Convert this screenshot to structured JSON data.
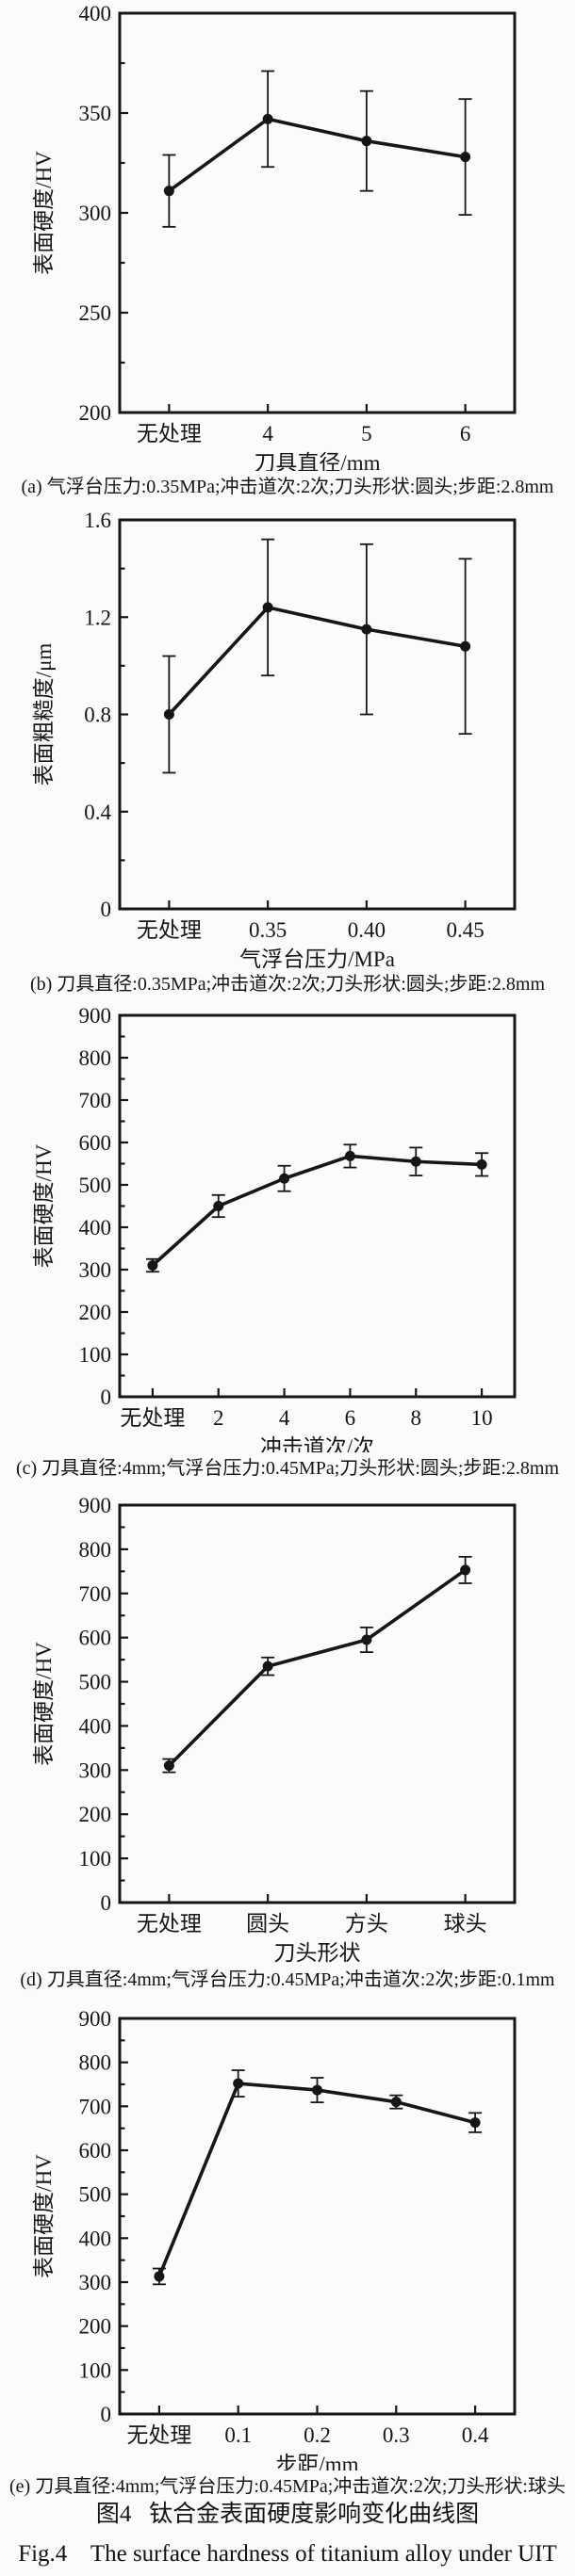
{
  "figure": {
    "caption_zh": "图4   钛合金表面硬度影响变化曲线图",
    "caption_en": "Fig.4    The surface hardness of titanium alloy under UIT"
  },
  "chart_data": [
    {
      "id": "a",
      "type": "line",
      "ylabel": "表面硬度/HV",
      "xlabel": "刀具直径/mm",
      "categories": [
        "无处理",
        "4",
        "5",
        "6"
      ],
      "values": [
        311,
        347,
        336,
        328
      ],
      "errors": [
        18,
        24,
        25,
        29
      ],
      "ylim": [
        200,
        400
      ],
      "ytick_step": 50,
      "yminor_step": 25,
      "grid": false,
      "legend": "none",
      "caption": "(a) 气浮台压力:0.35MPa;冲击道次:2次;刀头形状:圆头;步距:2.8mm"
    },
    {
      "id": "b",
      "type": "line",
      "ylabel": "表面粗糙度/μm",
      "xlabel": "气浮台压力/MPa",
      "categories": [
        "无处理",
        "0.35",
        "0.40",
        "0.45"
      ],
      "values": [
        0.8,
        1.24,
        1.15,
        1.08
      ],
      "errors": [
        0.24,
        0.28,
        0.35,
        0.36
      ],
      "ylim": [
        0,
        1.6
      ],
      "ytick_step": 0.4,
      "yminor_step": 0.2,
      "grid": false,
      "legend": "none",
      "caption": "(b) 刀具直径:0.35MPa;冲击道次:2次;刀头形状:圆头;步距:2.8mm"
    },
    {
      "id": "c",
      "type": "line",
      "ylabel": "表面硬度/HV",
      "xlabel": "冲击道次/次",
      "categories": [
        "无处理",
        "2",
        "4",
        "6",
        "8",
        "10"
      ],
      "values": [
        310,
        450,
        515,
        568,
        555,
        548
      ],
      "errors": [
        15,
        26,
        30,
        27,
        33,
        27
      ],
      "ylim": [
        0,
        900
      ],
      "ytick_step": 100,
      "yminor_step": 50,
      "grid": false,
      "legend": "none",
      "caption": "(c) 刀具直径:4mm;气浮台压力:0.45MPa;刀头形状:圆头;步距:2.8mm"
    },
    {
      "id": "d",
      "type": "line",
      "ylabel": "表面硬度/HV",
      "xlabel": "刀头形状",
      "categories": [
        "无处理",
        "圆头",
        "方头",
        "球头"
      ],
      "values": [
        310,
        535,
        595,
        753
      ],
      "errors": [
        15,
        20,
        28,
        30
      ],
      "ylim": [
        0,
        900
      ],
      "ytick_step": 100,
      "yminor_step": 50,
      "grid": false,
      "legend": "none",
      "caption": "(d) 刀具直径:4mm;气浮台压力:0.45MPa;冲击道次:2次;步距:0.1mm"
    },
    {
      "id": "e",
      "type": "line",
      "ylabel": "表面硬度/HV",
      "xlabel": "步距/mm",
      "categories": [
        "无处理",
        "0.1",
        "0.2",
        "0.3",
        "0.4"
      ],
      "values": [
        313,
        752,
        737,
        710,
        663
      ],
      "errors": [
        18,
        30,
        28,
        15,
        22
      ],
      "ylim": [
        0,
        900
      ],
      "ytick_step": 100,
      "yminor_step": 50,
      "grid": false,
      "legend": "none",
      "caption": "(e) 刀具直径:4mm;气浮台压力:0.45MPa;冲击道次:2次;刀头形状:球头"
    }
  ]
}
